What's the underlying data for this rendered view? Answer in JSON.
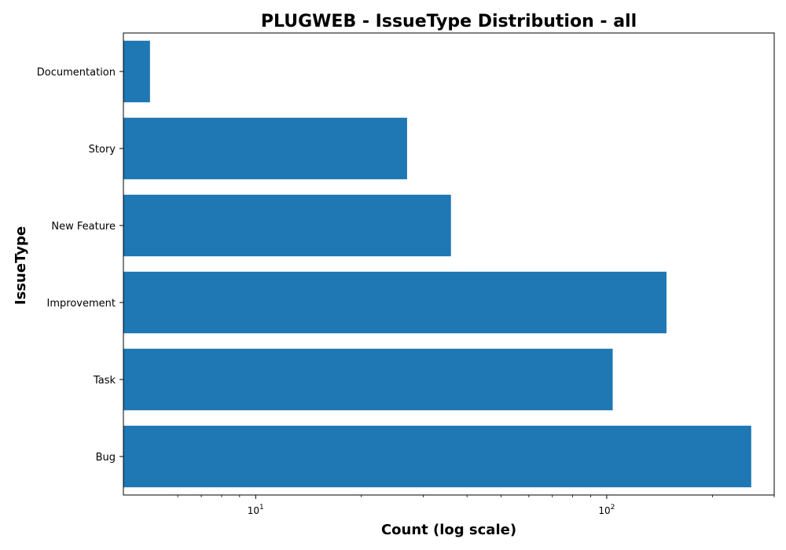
{
  "chart_data": {
    "type": "bar",
    "orientation": "horizontal",
    "title": "PLUGWEB - IssueType Distribution - all",
    "xlabel": "Count (log scale)",
    "ylabel": "IssueType",
    "xscale": "log",
    "xlim": [
      4.2,
      300
    ],
    "categories": [
      "Bug",
      "Task",
      "Improvement",
      "New Feature",
      "Story",
      "Documentation"
    ],
    "values": [
      258,
      104,
      148,
      36,
      27,
      5
    ],
    "major_ticks": [
      {
        "value": 10,
        "base": "10",
        "exp": "1"
      },
      {
        "value": 100,
        "base": "10",
        "exp": "2"
      }
    ],
    "minor_ticks": [
      6,
      7,
      8,
      9,
      20,
      30,
      40,
      50,
      60,
      70,
      80,
      90,
      200,
      300
    ],
    "bar_color": "#1f77b4",
    "grid": false
  }
}
